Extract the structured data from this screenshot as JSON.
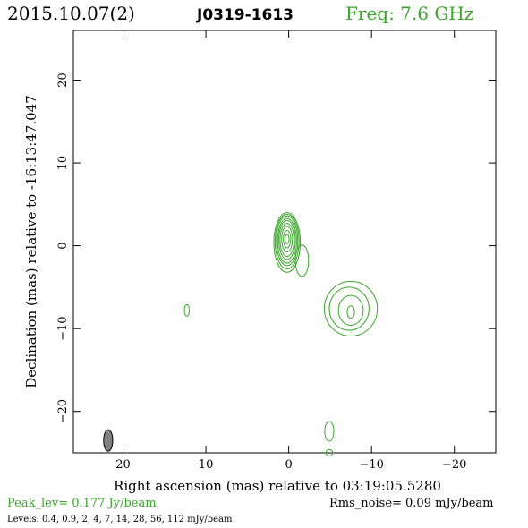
{
  "header": {
    "date": "2015.10.07(2)",
    "source": "J0319-1613",
    "freq": "Freq: 7.6 GHz"
  },
  "colors": {
    "contour": "#3aa62a",
    "axis": "#000000",
    "beam_fill": "#808080",
    "freq_text": "#3aa62a",
    "peak_text": "#3aa62a"
  },
  "chart_data": {
    "type": "contour",
    "title": "J0319-1613",
    "xlabel": "Right ascension (mas) relative to 03:19:05.5280",
    "ylabel": "Declination (mas) relative to -16:13:47.047",
    "xlim": [
      26,
      -25
    ],
    "ylim": [
      -25,
      26
    ],
    "xticks": [
      20,
      10,
      0,
      -10,
      -20
    ],
    "yticks": [
      20,
      10,
      0,
      -10,
      -20
    ],
    "xtick_labels": [
      "20",
      "10",
      "0",
      "−10",
      "−20"
    ],
    "ytick_labels": [
      "20",
      "10",
      "0",
      "−10",
      "−20"
    ],
    "grid": false,
    "peak_level": "Peak_lev=  0.177 Jy/beam",
    "rms_noise": "Rms_noise= 0.09 mJy/beam",
    "levels_text": "Levels: 0.4, 0.9,    2,    4,    7,   14,   28,   56, 112 mJy/beam",
    "contour_levels_mjy": [
      0.4,
      0.9,
      2,
      4,
      7,
      14,
      28,
      56,
      112
    ],
    "beam": {
      "x": 21.8,
      "y": -23.5,
      "major": 2.6,
      "minor": 1.1,
      "pa_deg": 0
    },
    "components": [
      {
        "name": "core",
        "x": 0.2,
        "y": 0.4,
        "contours": [
          {
            "rx": 1.6,
            "ry": 3.6,
            "dx": 0,
            "dy": 0
          },
          {
            "rx": 1.45,
            "ry": 3.3,
            "dx": 0,
            "dy": 0.1
          },
          {
            "rx": 1.3,
            "ry": 3.0,
            "dx": 0,
            "dy": 0.2
          },
          {
            "rx": 1.15,
            "ry": 2.7,
            "dx": 0,
            "dy": 0.2
          },
          {
            "rx": 1.0,
            "ry": 2.35,
            "dx": 0,
            "dy": 0.3
          },
          {
            "rx": 0.85,
            "ry": 2.0,
            "dx": 0,
            "dy": 0.3
          },
          {
            "rx": 0.65,
            "ry": 1.55,
            "dx": 0,
            "dy": 0.4
          },
          {
            "rx": 0.45,
            "ry": 1.05,
            "dx": 0,
            "dy": 0.4
          },
          {
            "rx": 0.25,
            "ry": 0.55,
            "dx": 0,
            "dy": 0.4
          }
        ],
        "tail": {
          "x": -1.6,
          "y": -1.8,
          "rx": 0.8,
          "ry": 1.9
        }
      },
      {
        "name": "jet-knot",
        "x": -7.5,
        "y": -7.6,
        "contours": [
          {
            "rx": 3.2,
            "ry": 3.3,
            "dx": 0,
            "dy": 0
          },
          {
            "rx": 2.4,
            "ry": 2.6,
            "dx": -0.2,
            "dy": 0
          },
          {
            "rx": 1.5,
            "ry": 1.8,
            "dx": 0,
            "dy": -0.2
          },
          {
            "rx": 0.45,
            "ry": 0.75,
            "dx": 0,
            "dy": -0.4
          }
        ]
      },
      {
        "name": "blob-west",
        "x": 12.3,
        "y": -7.8,
        "contours": [
          {
            "rx": 0.3,
            "ry": 0.7,
            "dx": 0,
            "dy": 0
          }
        ]
      },
      {
        "name": "blob-south",
        "x": -4.9,
        "y": -22.4,
        "contours": [
          {
            "rx": 0.55,
            "ry": 1.2,
            "dx": 0,
            "dy": 0
          }
        ]
      },
      {
        "name": "blob-edge",
        "x": -4.9,
        "y": -25.0,
        "contours": [
          {
            "rx": 0.4,
            "ry": 0.4,
            "dx": 0,
            "dy": 0
          }
        ]
      }
    ]
  }
}
